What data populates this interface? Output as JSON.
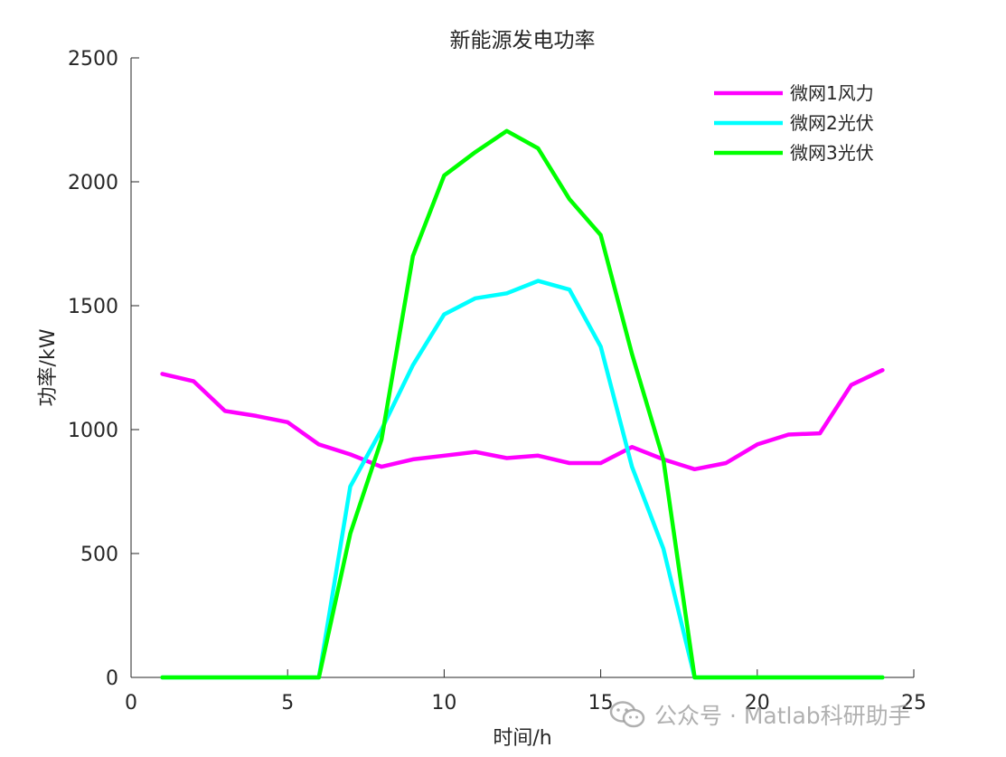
{
  "chart_data": {
    "type": "line",
    "title": "新能源发电功率",
    "xlabel": "时间/h",
    "ylabel": "功率/kW",
    "xlim": [
      0,
      25
    ],
    "ylim": [
      0,
      2500
    ],
    "xticks": [
      0,
      5,
      10,
      15,
      20,
      25
    ],
    "yticks": [
      0,
      500,
      1000,
      1500,
      2000,
      2500
    ],
    "grid": false,
    "legend_position": "top-right",
    "x": [
      1,
      2,
      3,
      4,
      5,
      6,
      7,
      8,
      9,
      10,
      11,
      12,
      13,
      14,
      15,
      16,
      17,
      18,
      19,
      20,
      21,
      22,
      23,
      24
    ],
    "series": [
      {
        "name": "微网1风力",
        "color": "#ff00ff",
        "values": [
          1225,
          1195,
          1075,
          1055,
          1030,
          940,
          900,
          850,
          880,
          895,
          910,
          885,
          895,
          865,
          865,
          930,
          880,
          840,
          865,
          940,
          980,
          985,
          1180,
          1240
        ]
      },
      {
        "name": "微网2光伏",
        "color": "#00ffff",
        "values": [
          0,
          0,
          0,
          0,
          0,
          0,
          770,
          1000,
          1260,
          1465,
          1530,
          1550,
          1600,
          1565,
          1335,
          850,
          520,
          0,
          0,
          0,
          0,
          0,
          0,
          0
        ]
      },
      {
        "name": "微网3光伏",
        "color": "#00ff00",
        "values": [
          0,
          0,
          0,
          0,
          0,
          0,
          580,
          960,
          1700,
          2025,
          2120,
          2205,
          2135,
          1930,
          1785,
          1305,
          880,
          0,
          0,
          0,
          0,
          0,
          0,
          0
        ]
      }
    ]
  },
  "watermark": {
    "icon": "wechat-icon",
    "text": "公众号 · Matlab科研助手"
  }
}
